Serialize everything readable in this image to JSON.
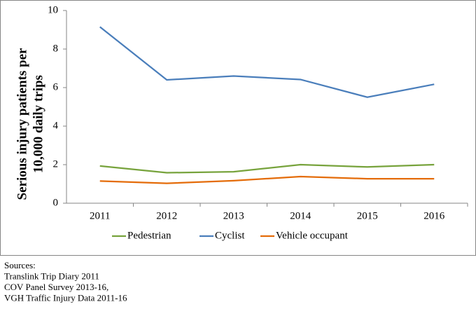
{
  "chart_data": {
    "type": "line",
    "y_label": [
      "Serious injury patients per",
      "10,000 daily trips"
    ],
    "categories": [
      "2011",
      "2012",
      "2013",
      "2014",
      "2015",
      "2016"
    ],
    "series": [
      {
        "name": "Pedestrian",
        "color": "#77a33c",
        "values": [
          1.93,
          1.58,
          1.63,
          2.0,
          1.88,
          2.0
        ]
      },
      {
        "name": "Cyclist",
        "color": "#4a7ebb",
        "values": [
          9.15,
          6.4,
          6.6,
          6.42,
          5.5,
          6.17
        ]
      },
      {
        "name": "Vehicle occupant",
        "color": "#e46c0a",
        "values": [
          1.15,
          1.03,
          1.17,
          1.38,
          1.27,
          1.27
        ]
      }
    ],
    "ylim": [
      0,
      10
    ],
    "yticks": [
      0,
      2,
      4,
      6,
      8,
      10
    ],
    "grid": false,
    "legend": "bottom",
    "footnotes": [
      "Sources:",
      "Translink Trip Diary 2011",
      "COV Panel Survey 2013-16,",
      "VGH Traffic Injury Data 2011-16"
    ]
  }
}
